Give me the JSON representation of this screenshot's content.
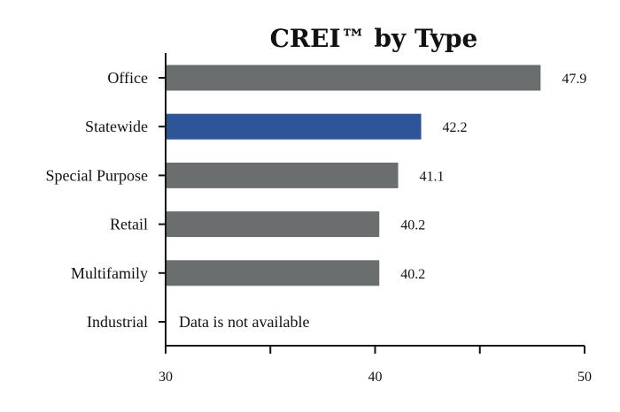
{
  "chart_data": {
    "type": "bar",
    "orientation": "horizontal",
    "title": "CREI™ by Type",
    "categories": [
      "Office",
      "Statewide",
      "Special Purpose",
      "Retail",
      "Multifamily",
      "Industrial"
    ],
    "values": [
      47.9,
      42.2,
      41.1,
      40.2,
      40.2,
      null
    ],
    "value_labels": [
      "47.9",
      "42.2",
      "41.1",
      "40.2",
      "40.2",
      ""
    ],
    "colors": [
      "#6b6e6e",
      "#2e5597",
      "#6b6e6e",
      "#6b6e6e",
      "#6b6e6e",
      "#6b6e6e"
    ],
    "unavailable_note": "Data is not available",
    "xlim": [
      30,
      50
    ],
    "xticks": [
      30,
      35,
      40,
      45,
      50
    ],
    "xtick_labels": [
      "30",
      "",
      "40",
      "",
      "50"
    ],
    "xlabel": "",
    "ylabel": "",
    "grid": false,
    "legend": "none"
  }
}
